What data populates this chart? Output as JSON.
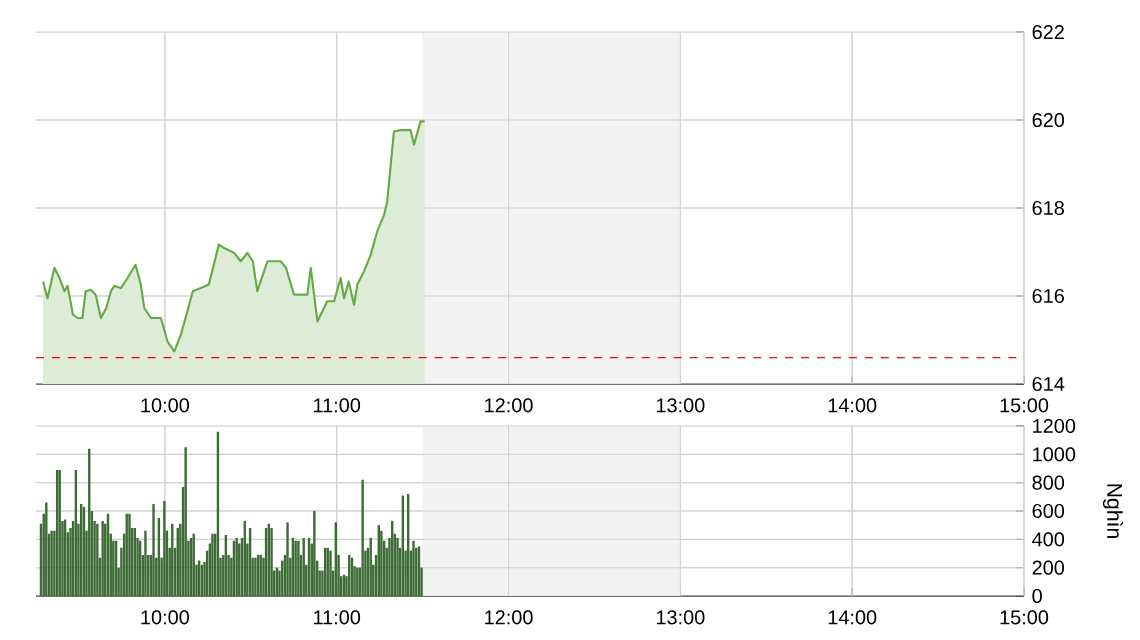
{
  "chart_data": [
    {
      "type": "area",
      "color": "#66aa44",
      "grid": true,
      "x": [
        9.291,
        9.317,
        9.357,
        9.387,
        9.415,
        9.434,
        9.465,
        9.492,
        9.52,
        9.539,
        9.57,
        9.597,
        9.628,
        9.659,
        9.686,
        9.706,
        9.744,
        9.783,
        9.829,
        9.86,
        9.88,
        9.919,
        9.977,
        10.015,
        10.055,
        10.093,
        10.131,
        10.163,
        10.209,
        10.256,
        10.314,
        10.345,
        10.403,
        10.442,
        10.48,
        10.512,
        10.538,
        10.597,
        10.674,
        10.705,
        10.752,
        10.829,
        10.849,
        10.888,
        10.945,
        10.985,
        11.023,
        11.043,
        11.07,
        11.101,
        11.12,
        11.159,
        11.198,
        11.236,
        11.276,
        11.294,
        11.333,
        11.372,
        11.43,
        11.45,
        11.488,
        11.512
      ],
      "values": [
        616.33,
        615.95,
        616.64,
        616.41,
        616.11,
        616.23,
        615.58,
        615.5,
        615.5,
        616.11,
        616.14,
        616.03,
        615.5,
        615.73,
        616.11,
        616.23,
        616.18,
        616.41,
        616.71,
        616.26,
        615.73,
        615.5,
        615.5,
        614.97,
        614.74,
        615.12,
        615.65,
        616.11,
        616.18,
        616.26,
        617.17,
        617.09,
        616.98,
        616.79,
        616.98,
        616.79,
        616.11,
        616.79,
        616.79,
        616.64,
        616.03,
        616.03,
        616.64,
        615.42,
        615.88,
        615.88,
        616.41,
        615.95,
        616.33,
        615.8,
        616.26,
        616.56,
        616.94,
        617.47,
        617.85,
        618.15,
        619.74,
        619.77,
        619.77,
        619.44,
        619.97,
        619.97
      ],
      "xlim": [
        9.25,
        15
      ],
      "xticks": [
        {
          "value": 10,
          "label": "10:00"
        },
        {
          "value": 11,
          "label": "11:00"
        },
        {
          "value": 12,
          "label": "12:00"
        },
        {
          "value": 13,
          "label": "13:00"
        },
        {
          "value": 14,
          "label": "14:00"
        },
        {
          "value": 15,
          "label": "15:00"
        }
      ],
      "ylim": [
        614,
        622
      ],
      "yticks": [
        614,
        616,
        618,
        620,
        622
      ],
      "ref_lines": [
        {
          "axis": "y",
          "value": 614.6,
          "color": "#ff0000",
          "line_style": "dashed"
        }
      ],
      "bands": [
        {
          "axis": "x",
          "from": 11.5,
          "to": 13,
          "color": "#f2f2f2"
        }
      ]
    },
    {
      "type": "bar",
      "color": "#3d6b35",
      "grid": true,
      "ylabel": "Nghìn",
      "x": [
        9.279,
        9.295,
        9.31,
        9.326,
        9.341,
        9.357,
        9.373,
        9.388,
        9.404,
        9.419,
        9.435,
        9.451,
        9.466,
        9.482,
        9.497,
        9.513,
        9.529,
        9.544,
        9.56,
        9.575,
        9.591,
        9.607,
        9.622,
        9.638,
        9.653,
        9.669,
        9.685,
        9.7,
        9.716,
        9.731,
        9.747,
        9.763,
        9.778,
        9.794,
        9.809,
        9.825,
        9.841,
        9.856,
        9.872,
        9.887,
        9.903,
        9.919,
        9.934,
        9.95,
        9.965,
        9.981,
        9.997,
        10.012,
        10.028,
        10.043,
        10.059,
        10.075,
        10.09,
        10.106,
        10.121,
        10.137,
        10.153,
        10.168,
        10.184,
        10.199,
        10.215,
        10.231,
        10.246,
        10.262,
        10.277,
        10.293,
        10.309,
        10.324,
        10.34,
        10.355,
        10.371,
        10.387,
        10.402,
        10.418,
        10.433,
        10.449,
        10.465,
        10.48,
        10.496,
        10.511,
        10.527,
        10.543,
        10.558,
        10.574,
        10.589,
        10.605,
        10.621,
        10.636,
        10.652,
        10.667,
        10.683,
        10.699,
        10.714,
        10.73,
        10.745,
        10.761,
        10.777,
        10.792,
        10.808,
        10.823,
        10.839,
        10.855,
        10.87,
        10.886,
        10.901,
        10.917,
        10.933,
        10.948,
        10.964,
        10.979,
        10.995,
        11.011,
        11.026,
        11.042,
        11.057,
        11.073,
        11.089,
        11.104,
        11.12,
        11.135,
        11.151,
        11.167,
        11.182,
        11.198,
        11.213,
        11.229,
        11.245,
        11.26,
        11.276,
        11.291,
        11.307,
        11.323,
        11.338,
        11.354,
        11.369,
        11.385,
        11.401,
        11.416,
        11.432,
        11.447,
        11.463,
        11.479,
        11.494
      ],
      "values": [
        510,
        580,
        660,
        440,
        460,
        460,
        890,
        890,
        530,
        540,
        450,
        480,
        530,
        890,
        510,
        650,
        630,
        460,
        1040,
        600,
        530,
        510,
        270,
        530,
        510,
        580,
        440,
        390,
        390,
        200,
        340,
        440,
        580,
        580,
        480,
        480,
        410,
        390,
        290,
        460,
        290,
        290,
        650,
        270,
        550,
        270,
        670,
        460,
        340,
        510,
        340,
        480,
        510,
        770,
        1050,
        390,
        410,
        440,
        220,
        250,
        220,
        240,
        320,
        370,
        440,
        440,
        1160,
        270,
        290,
        430,
        290,
        270,
        390,
        410,
        370,
        410,
        530,
        370,
        480,
        270,
        270,
        290,
        290,
        270,
        480,
        510,
        480,
        180,
        200,
        180,
        250,
        290,
        520,
        270,
        410,
        390,
        390,
        290,
        410,
        220,
        410,
        370,
        600,
        250,
        180,
        180,
        340,
        340,
        320,
        180,
        520,
        290,
        140,
        150,
        140,
        290,
        270,
        210,
        200,
        200,
        820,
        320,
        340,
        410,
        220,
        290,
        500,
        460,
        390,
        340,
        410,
        530,
        440,
        410,
        340,
        710,
        320,
        720,
        320,
        390,
        340,
        350,
        200
      ],
      "xlim": [
        9.25,
        15
      ],
      "xticks": [
        {
          "value": 10,
          "label": "10:00"
        },
        {
          "value": 11,
          "label": "11:00"
        },
        {
          "value": 12,
          "label": "12:00"
        },
        {
          "value": 13,
          "label": "13:00"
        },
        {
          "value": 14,
          "label": "14:00"
        },
        {
          "value": 15,
          "label": "15:00"
        }
      ],
      "ylim": [
        0,
        1200
      ],
      "yticks": [
        0,
        200,
        400,
        600,
        800,
        1000,
        1200
      ],
      "bands": [
        {
          "axis": "x",
          "from": 11.5,
          "to": 13,
          "color": "#f2f2f2"
        }
      ]
    }
  ]
}
